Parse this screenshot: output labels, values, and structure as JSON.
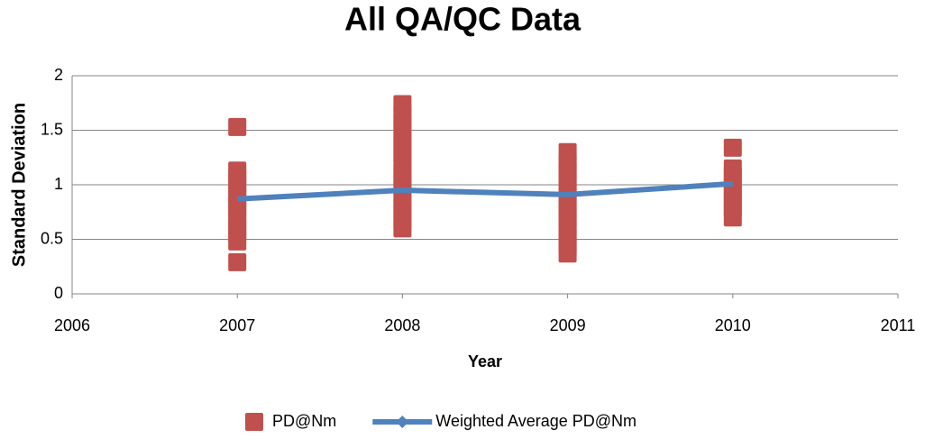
{
  "chart_data": {
    "type": "scatter",
    "title": "All QA/QC Data",
    "x_label": "Year",
    "y_label": "Standard Deviation",
    "xlim": [
      2006,
      2011
    ],
    "xticks": [
      2006,
      2007,
      2008,
      2009,
      2010,
      2011
    ],
    "ylim": [
      0,
      2
    ],
    "yticks": [
      0,
      0.5,
      1,
      1.5,
      2
    ],
    "grid": true,
    "legend": "bottom",
    "series": [
      {
        "name": "PD@Nm",
        "type": "scatter",
        "color": "#c0504d",
        "x": [
          2007,
          2007,
          2007,
          2007,
          2007,
          2007,
          2007,
          2007,
          2007,
          2007,
          2007,
          2007,
          2008,
          2008,
          2008,
          2008,
          2008,
          2008,
          2008,
          2008,
          2008,
          2008,
          2008,
          2008,
          2008,
          2008,
          2008,
          2008,
          2009,
          2009,
          2009,
          2009,
          2009,
          2009,
          2009,
          2009,
          2009,
          2009,
          2009,
          2009,
          2009,
          2010,
          2010,
          2010,
          2010,
          2010,
          2010,
          2010,
          2010
        ],
        "values": [
          0.29,
          0.48,
          0.55,
          0.62,
          0.7,
          0.78,
          0.85,
          0.92,
          1.0,
          1.07,
          1.13,
          1.53,
          0.6,
          0.67,
          0.75,
          0.82,
          0.9,
          0.97,
          1.05,
          1.12,
          1.2,
          1.28,
          1.35,
          1.42,
          1.5,
          1.58,
          1.65,
          1.74,
          0.37,
          0.45,
          0.52,
          0.6,
          0.68,
          0.75,
          0.83,
          0.9,
          0.98,
          1.05,
          1.13,
          1.2,
          1.3,
          0.7,
          0.78,
          0.85,
          0.93,
          1.0,
          1.08,
          1.15,
          1.34
        ]
      },
      {
        "name": "Weighted Average PD@Nm",
        "type": "line",
        "color": "#4f81bd",
        "x": [
          2007,
          2008,
          2009,
          2010
        ],
        "values": [
          0.87,
          0.95,
          0.91,
          1.01
        ]
      }
    ]
  }
}
